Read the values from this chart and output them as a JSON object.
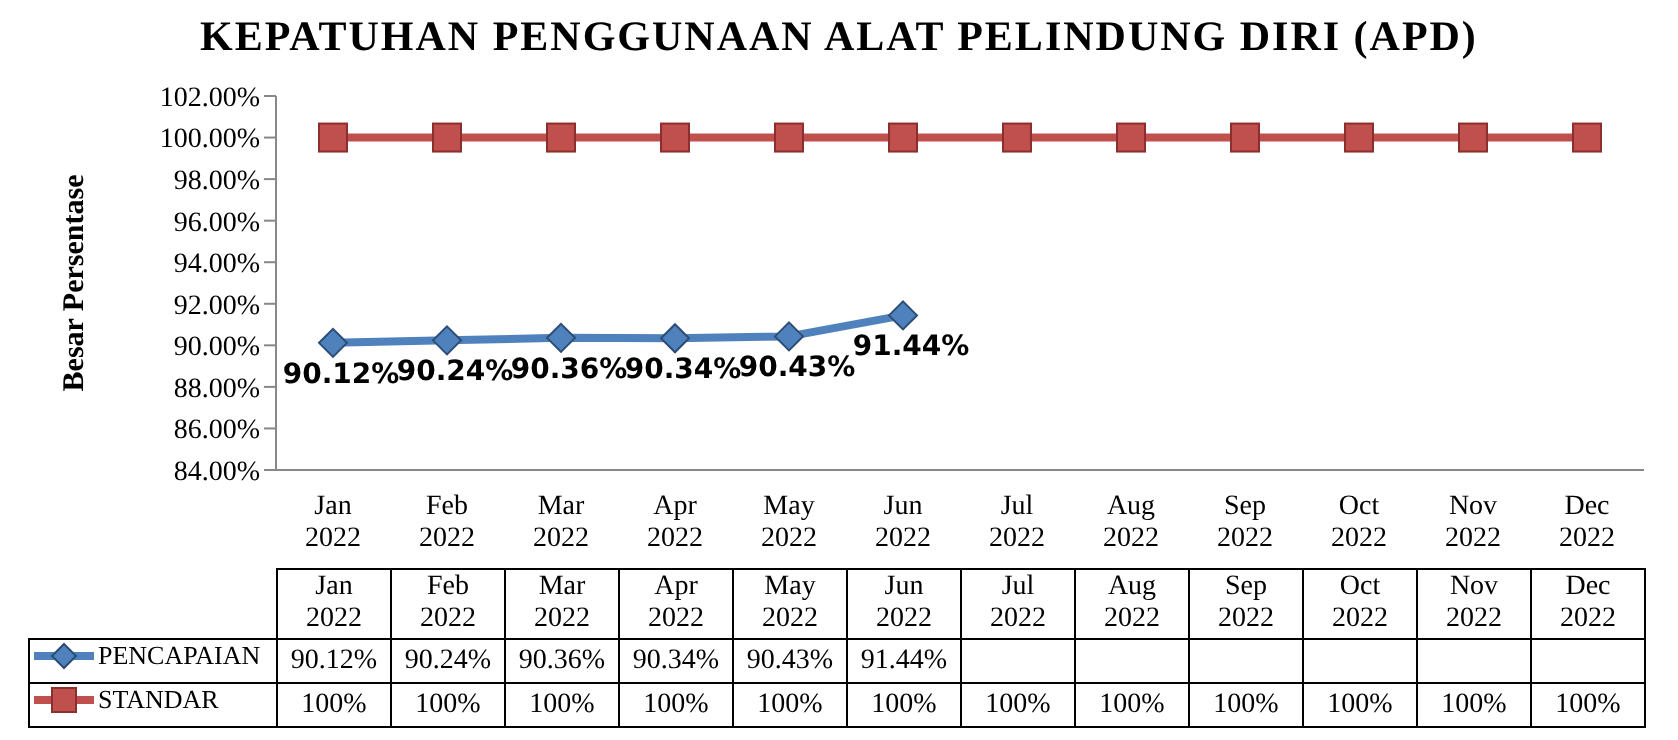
{
  "chart_data": {
    "type": "line",
    "title": "KEPATUHAN PENGGUNAAN ALAT PELINDUNG DIRI (APD)",
    "ylabel": "Besar Persentase",
    "categories": [
      "Jan 2022",
      "Feb 2022",
      "Mar 2022",
      "Apr 2022",
      "May 2022",
      "Jun 2022",
      "Jul 2022",
      "Aug 2022",
      "Sep 2022",
      "Oct 2022",
      "Nov 2022",
      "Dec 2022"
    ],
    "series": [
      {
        "name": "PENCAPAIAN",
        "color": "#4f81bd",
        "marker": "diamond",
        "values": [
          90.12,
          90.24,
          90.36,
          90.34,
          90.43,
          91.44,
          null,
          null,
          null,
          null,
          null,
          null
        ],
        "value_labels": [
          "90.12%",
          "90.24%",
          "90.36%",
          "90.34%",
          "90.43%",
          "91.44%",
          null,
          null,
          null,
          null,
          null,
          null
        ]
      },
      {
        "name": "STANDAR",
        "color": "#c0504d",
        "marker": "square",
        "values": [
          100,
          100,
          100,
          100,
          100,
          100,
          100,
          100,
          100,
          100,
          100,
          100
        ],
        "value_labels": [
          "100%",
          "100%",
          "100%",
          "100%",
          "100%",
          "100%",
          "100%",
          "100%",
          "100%",
          "100%",
          "100%",
          "100%"
        ]
      }
    ],
    "ylim": [
      84,
      102
    ],
    "yticks": [
      {
        "value": 84,
        "label": "84.00%"
      },
      {
        "value": 86,
        "label": "86.00%"
      },
      {
        "value": 88,
        "label": "88.00%"
      },
      {
        "value": 90,
        "label": "90.00%"
      },
      {
        "value": 92,
        "label": "92.00%"
      },
      {
        "value": 94,
        "label": "94.00%"
      },
      {
        "value": 96,
        "label": "96.00%"
      },
      {
        "value": 98,
        "label": "98.00%"
      },
      {
        "value": 100,
        "label": "100.00%"
      },
      {
        "value": 102,
        "label": "102.00%"
      }
    ],
    "grid": false,
    "legend": "bottom",
    "data_labels": true,
    "line_style": "solid"
  }
}
